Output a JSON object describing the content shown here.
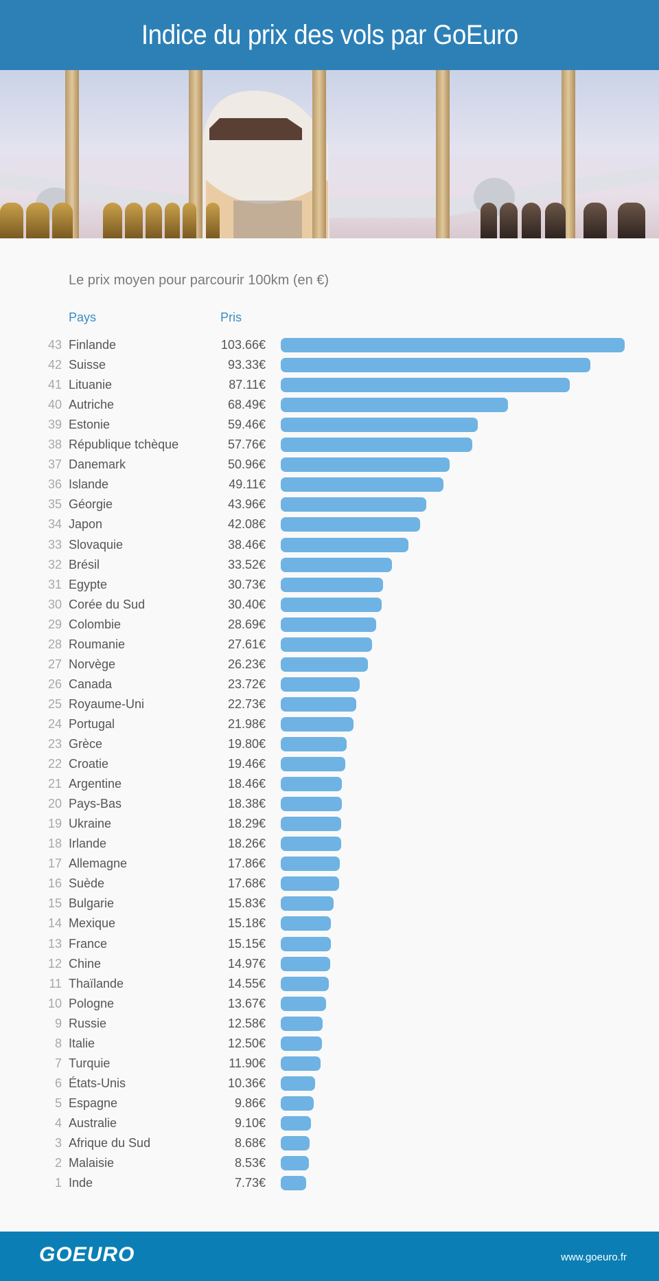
{
  "header": {
    "title": "Indice du prix des vols par GoEuro"
  },
  "chart_data": {
    "type": "bar",
    "title": "Le prix moyen pour parcourir 100km (en €)",
    "column_headers": {
      "country": "Pays",
      "price": "Pris"
    },
    "unit": "€",
    "bar_color": "#6eb3e3",
    "xlim": [
      0,
      103.66
    ],
    "rows": [
      {
        "rank": "43",
        "country": "Finlande",
        "value": 103.66,
        "label": "103.66€"
      },
      {
        "rank": "42",
        "country": "Suisse",
        "value": 93.33,
        "label": "93.33€"
      },
      {
        "rank": "41",
        "country": "Lituanie",
        "value": 87.11,
        "label": "87.11€"
      },
      {
        "rank": "40",
        "country": "Autriche",
        "value": 68.49,
        "label": "68.49€"
      },
      {
        "rank": "39",
        "country": "Estonie",
        "value": 59.46,
        "label": "59.46€"
      },
      {
        "rank": "38",
        "country": "République tchèque",
        "value": 57.76,
        "label": "57.76€"
      },
      {
        "rank": "37",
        "country": "Danemark",
        "value": 50.96,
        "label": "50.96€"
      },
      {
        "rank": "36",
        "country": "Islande",
        "value": 49.11,
        "label": "49.11€"
      },
      {
        "rank": "35",
        "country": "Géorgie",
        "value": 43.96,
        "label": "43.96€"
      },
      {
        "rank": "34",
        "country": "Japon",
        "value": 42.08,
        "label": "42.08€"
      },
      {
        "rank": "33",
        "country": "Slovaquie",
        "value": 38.46,
        "label": "38.46€"
      },
      {
        "rank": "32",
        "country": "Brésil",
        "value": 33.52,
        "label": "33.52€"
      },
      {
        "rank": "31",
        "country": "Egypte",
        "value": 30.73,
        "label": "30.73€"
      },
      {
        "rank": "30",
        "country": "Corée du Sud",
        "value": 30.4,
        "label": "30.40€"
      },
      {
        "rank": "29",
        "country": "Colombie",
        "value": 28.69,
        "label": "28.69€"
      },
      {
        "rank": "28",
        "country": "Roumanie",
        "value": 27.61,
        "label": "27.61€"
      },
      {
        "rank": "27",
        "country": "Norvège",
        "value": 26.23,
        "label": "26.23€"
      },
      {
        "rank": "26",
        "country": "Canada",
        "value": 23.72,
        "label": "23.72€"
      },
      {
        "rank": "25",
        "country": "Royaume-Uni",
        "value": 22.73,
        "label": "22.73€"
      },
      {
        "rank": "24",
        "country": "Portugal",
        "value": 21.98,
        "label": "21.98€"
      },
      {
        "rank": "23",
        "country": "Grèce",
        "value": 19.8,
        "label": "19.80€"
      },
      {
        "rank": "22",
        "country": "Croatie",
        "value": 19.46,
        "label": "19.46€"
      },
      {
        "rank": "21",
        "country": "Argentine",
        "value": 18.46,
        "label": "18.46€"
      },
      {
        "rank": "20",
        "country": "Pays-Bas",
        "value": 18.38,
        "label": "18.38€"
      },
      {
        "rank": "19",
        "country": "Ukraine",
        "value": 18.29,
        "label": "18.29€"
      },
      {
        "rank": "18",
        "country": "Irlande",
        "value": 18.26,
        "label": "18.26€"
      },
      {
        "rank": "17",
        "country": "Allemagne",
        "value": 17.86,
        "label": "17.86€"
      },
      {
        "rank": "16",
        "country": "Suède",
        "value": 17.68,
        "label": "17.68€"
      },
      {
        "rank": "15",
        "country": "Bulgarie",
        "value": 15.83,
        "label": "15.83€"
      },
      {
        "rank": "14",
        "country": "Mexique",
        "value": 15.18,
        "label": "15.18€"
      },
      {
        "rank": "13",
        "country": "France",
        "value": 15.15,
        "label": "15.15€"
      },
      {
        "rank": "12",
        "country": "Chine",
        "value": 14.97,
        "label": "14.97€"
      },
      {
        "rank": "11",
        "country": "Thaïlande",
        "value": 14.55,
        "label": "14.55€"
      },
      {
        "rank": "10",
        "country": "Pologne",
        "value": 13.67,
        "label": "13.67€"
      },
      {
        "rank": "9",
        "country": "Russie",
        "value": 12.58,
        "label": "12.58€"
      },
      {
        "rank": "8",
        "country": "Italie",
        "value": 12.5,
        "label": "12.50€"
      },
      {
        "rank": "7",
        "country": "Turquie",
        "value": 11.9,
        "label": "11.90€"
      },
      {
        "rank": "6",
        "country": "États-Unis",
        "value": 10.36,
        "label": "10.36€"
      },
      {
        "rank": "5",
        "country": "Espagne",
        "value": 9.86,
        "label": "9.86€"
      },
      {
        "rank": "4",
        "country": "Australie",
        "value": 9.1,
        "label": "9.10€"
      },
      {
        "rank": "3",
        "country": "Afrique du Sud",
        "value": 8.68,
        "label": "8.68€"
      },
      {
        "rank": "2",
        "country": "Malaisie",
        "value": 8.53,
        "label": "8.53€"
      },
      {
        "rank": "1",
        "country": "Inde",
        "value": 7.73,
        "label": "7.73€"
      }
    ]
  },
  "footer": {
    "logo": "GOEURO",
    "url": "www.goeuro.fr"
  },
  "colors": {
    "header": "#2c80b6",
    "footer": "#0b7fb5",
    "accent": "#3a8cc3"
  }
}
